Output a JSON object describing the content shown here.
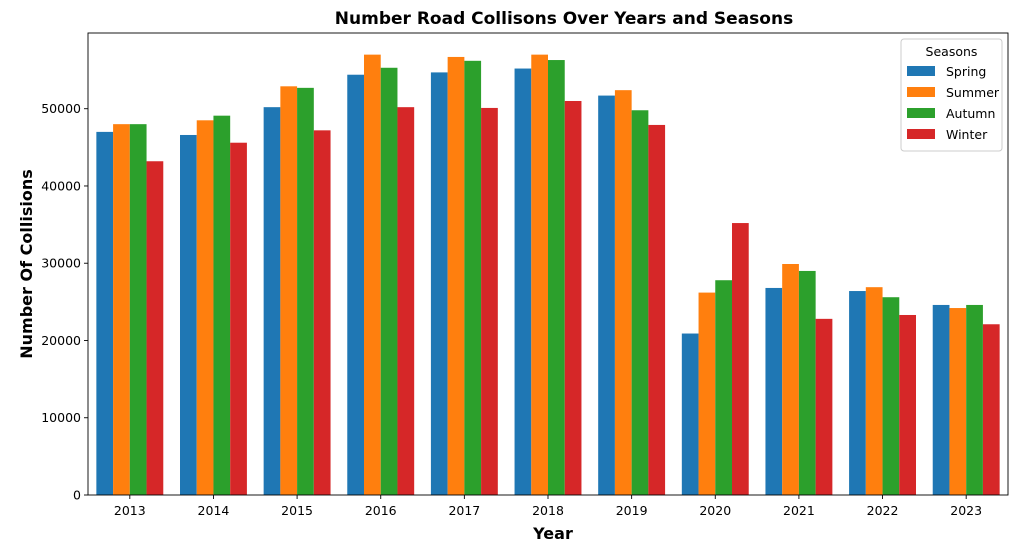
{
  "chart_data": {
    "type": "bar",
    "title": "Number Road Collisons Over Years and Seasons",
    "xlabel": "Year",
    "ylabel": "Number Of Collisions",
    "categories": [
      "2013",
      "2014",
      "2015",
      "2016",
      "2017",
      "2018",
      "2019",
      "2020",
      "2021",
      "2022",
      "2023"
    ],
    "ylim": [
      0,
      59800
    ],
    "yticks": [
      0,
      10000,
      20000,
      30000,
      40000,
      50000
    ],
    "legend": {
      "title": "Seasons",
      "placement": "top-right"
    },
    "series": [
      {
        "name": "Spring",
        "color": "#1f77b4",
        "values": [
          47000,
          46600,
          50200,
          54400,
          54700,
          55200,
          51700,
          20900,
          26800,
          26400,
          24600
        ]
      },
      {
        "name": "Summer",
        "color": "#ff7f0e",
        "values": [
          48000,
          48500,
          52900,
          57000,
          56700,
          57000,
          52400,
          26200,
          29900,
          26900,
          24200
        ]
      },
      {
        "name": "Autumn",
        "color": "#2ca02c",
        "values": [
          48000,
          49100,
          52700,
          55300,
          56200,
          56300,
          49800,
          27800,
          29000,
          25600,
          24600
        ]
      },
      {
        "name": "Winter",
        "color": "#d62728",
        "values": [
          43200,
          45600,
          47200,
          50200,
          50100,
          51000,
          47900,
          35200,
          22800,
          23300,
          22100
        ]
      }
    ]
  }
}
